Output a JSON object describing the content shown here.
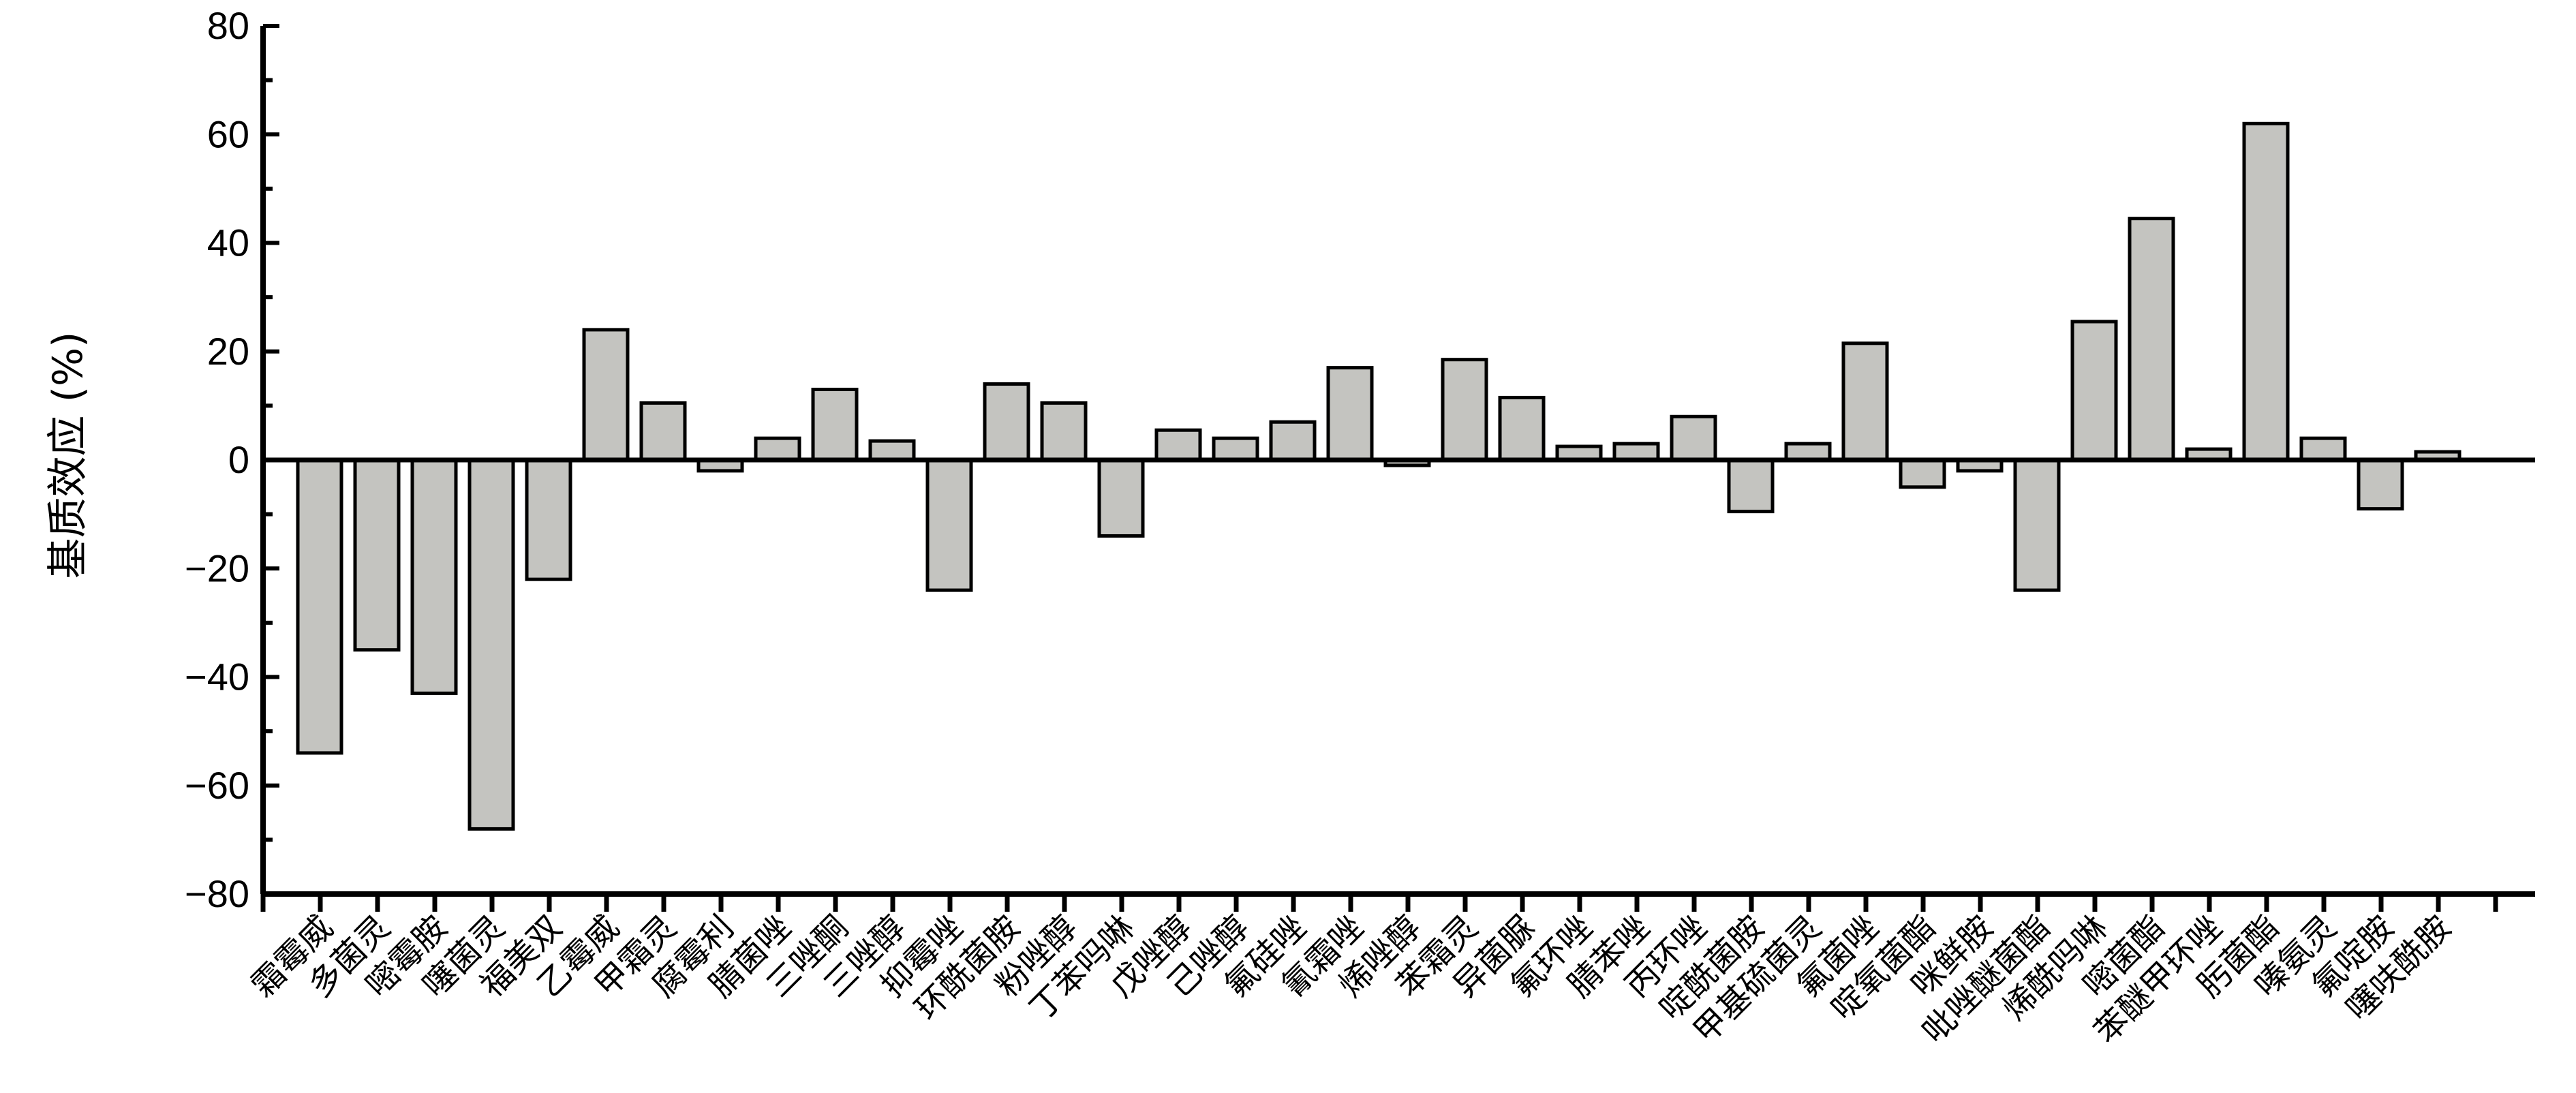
{
  "chart_data": {
    "type": "bar",
    "ylabel": "基质效应 (%)",
    "ylim": [
      -80,
      80
    ],
    "yticks": [
      80,
      60,
      40,
      20,
      0,
      -20,
      -40,
      -60,
      -80
    ],
    "ytick_labels": [
      "80",
      "60",
      "40",
      "20",
      "0",
      "−20",
      "−40",
      "−60",
      "−80"
    ],
    "grid": false,
    "bar_color": "#c4c4c0",
    "categories": [
      "霜霉威",
      "多菌灵",
      "嘧霉胺",
      "噻菌灵",
      "福美双",
      "乙霉威",
      "甲霜灵",
      "腐霉利",
      "腈菌唑",
      "三唑酮",
      "三唑醇",
      "抑霉唑",
      "环酰菌胺",
      "粉唑醇",
      "丁苯吗啉",
      "戊唑醇",
      "己唑醇",
      "氟硅唑",
      "氰霜唑",
      "烯唑醇",
      "苯霜灵",
      "异菌脲",
      "氟环唑",
      "腈苯唑",
      "丙环唑",
      "啶酰菌胺",
      "甲基硫菌灵",
      "氟菌唑",
      "啶氧菌酯",
      "咪鲜胺",
      "吡唑醚菌酯",
      "烯酰吗啉",
      "嘧菌酯",
      "苯醚甲环唑",
      "肟菌酯",
      "嗪氨灵",
      "氟啶胺",
      "噻呋酰胺"
    ],
    "values": [
      -54,
      -35,
      -43,
      -68,
      -22,
      24,
      10.5,
      -2,
      4,
      13,
      3.5,
      -24,
      14,
      10.5,
      -14,
      5.5,
      4,
      7,
      17,
      -1,
      18.5,
      11.5,
      2.5,
      3,
      8,
      -9.5,
      3,
      21.5,
      -5,
      -2,
      -24,
      25.5,
      44.5,
      2,
      62,
      4,
      -9,
      1.5
    ]
  }
}
